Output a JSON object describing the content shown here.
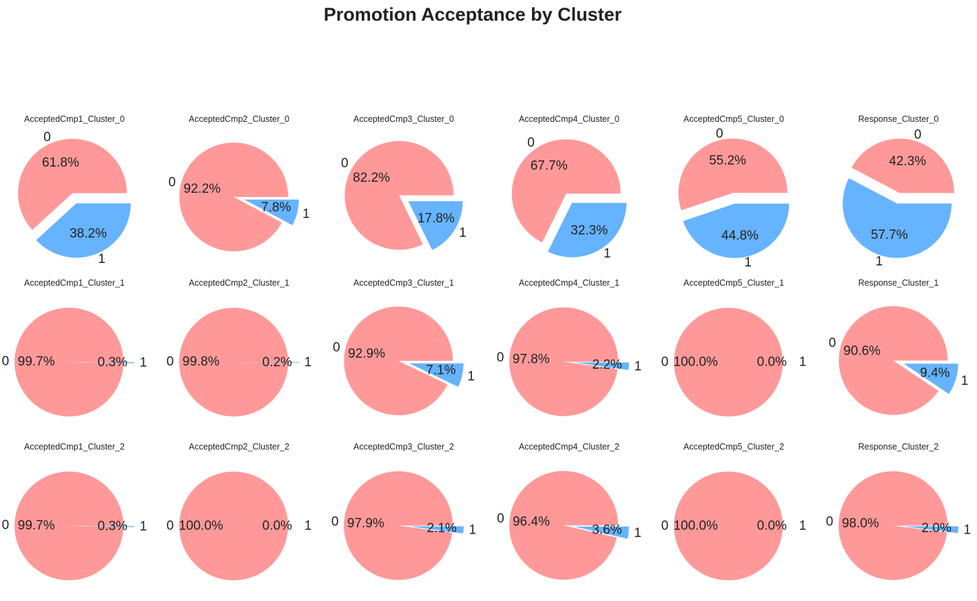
{
  "figure": {
    "title": "Promotion Acceptance by Cluster"
  },
  "colors": {
    "zero": "#ff9999",
    "one": "#66b3ff"
  },
  "chart_data": [
    {
      "type": "pie",
      "title": "AcceptedCmp1_Cluster_0",
      "categories": [
        "0",
        "1"
      ],
      "values": [
        61.8,
        38.2
      ],
      "data_labels": [
        "61.8%",
        "38.2%"
      ]
    },
    {
      "type": "pie",
      "title": "AcceptedCmp2_Cluster_0",
      "categories": [
        "0",
        "1"
      ],
      "values": [
        92.2,
        7.8
      ],
      "data_labels": [
        "92.2%",
        "7.8%"
      ]
    },
    {
      "type": "pie",
      "title": "AcceptedCmp3_Cluster_0",
      "categories": [
        "0",
        "1"
      ],
      "values": [
        82.2,
        17.8
      ],
      "data_labels": [
        "82.2%",
        "17.8%"
      ]
    },
    {
      "type": "pie",
      "title": "AcceptedCmp4_Cluster_0",
      "categories": [
        "0",
        "1"
      ],
      "values": [
        67.7,
        32.3
      ],
      "data_labels": [
        "67.7%",
        "32.3%"
      ]
    },
    {
      "type": "pie",
      "title": "AcceptedCmp5_Cluster_0",
      "categories": [
        "0",
        "1"
      ],
      "values": [
        55.2,
        44.8
      ],
      "data_labels": [
        "55.2%",
        "44.8%"
      ]
    },
    {
      "type": "pie",
      "title": "Response_Cluster_0",
      "categories": [
        "0",
        "1"
      ],
      "values": [
        42.3,
        57.7
      ],
      "data_labels": [
        "42.3%",
        "57.7%"
      ]
    },
    {
      "type": "pie",
      "title": "AcceptedCmp1_Cluster_1",
      "categories": [
        "0",
        "1"
      ],
      "values": [
        99.7,
        0.3
      ],
      "data_labels": [
        "99.7%",
        "0.3%"
      ]
    },
    {
      "type": "pie",
      "title": "AcceptedCmp2_Cluster_1",
      "categories": [
        "0",
        "1"
      ],
      "values": [
        99.8,
        0.2
      ],
      "data_labels": [
        "99.8%",
        "0.2%"
      ]
    },
    {
      "type": "pie",
      "title": "AcceptedCmp3_Cluster_1",
      "categories": [
        "0",
        "1"
      ],
      "values": [
        92.9,
        7.1
      ],
      "data_labels": [
        "92.9%",
        "7.1%"
      ]
    },
    {
      "type": "pie",
      "title": "AcceptedCmp4_Cluster_1",
      "categories": [
        "0",
        "1"
      ],
      "values": [
        97.8,
        2.2
      ],
      "data_labels": [
        "97.8%",
        "2.2%"
      ]
    },
    {
      "type": "pie",
      "title": "AcceptedCmp5_Cluster_1",
      "categories": [
        "0",
        "1"
      ],
      "values": [
        100.0,
        0.0
      ],
      "data_labels": [
        "100.0%",
        "0.0%"
      ]
    },
    {
      "type": "pie",
      "title": "Response_Cluster_1",
      "categories": [
        "0",
        "1"
      ],
      "values": [
        90.6,
        9.4
      ],
      "data_labels": [
        "90.6%",
        "9.4%"
      ]
    },
    {
      "type": "pie",
      "title": "AcceptedCmp1_Cluster_2",
      "categories": [
        "0",
        "1"
      ],
      "values": [
        99.7,
        0.3
      ],
      "data_labels": [
        "99.7%",
        "0.3%"
      ]
    },
    {
      "type": "pie",
      "title": "AcceptedCmp2_Cluster_2",
      "categories": [
        "0",
        "1"
      ],
      "values": [
        100.0,
        0.0
      ],
      "data_labels": [
        "100.0%",
        "0.0%"
      ]
    },
    {
      "type": "pie",
      "title": "AcceptedCmp3_Cluster_2",
      "categories": [
        "0",
        "1"
      ],
      "values": [
        97.9,
        2.1
      ],
      "data_labels": [
        "97.9%",
        "2.1%"
      ]
    },
    {
      "type": "pie",
      "title": "AcceptedCmp4_Cluster_2",
      "categories": [
        "0",
        "1"
      ],
      "values": [
        96.4,
        3.6
      ],
      "data_labels": [
        "96.4%",
        "3.6%"
      ]
    },
    {
      "type": "pie",
      "title": "AcceptedCmp5_Cluster_2",
      "categories": [
        "0",
        "1"
      ],
      "values": [
        100.0,
        0.0
      ],
      "data_labels": [
        "100.0%",
        "0.0%"
      ]
    },
    {
      "type": "pie",
      "title": "Response_Cluster_2",
      "categories": [
        "0",
        "1"
      ],
      "values": [
        98.0,
        2.0
      ],
      "data_labels": [
        "98.0%",
        "2.0%"
      ]
    }
  ]
}
